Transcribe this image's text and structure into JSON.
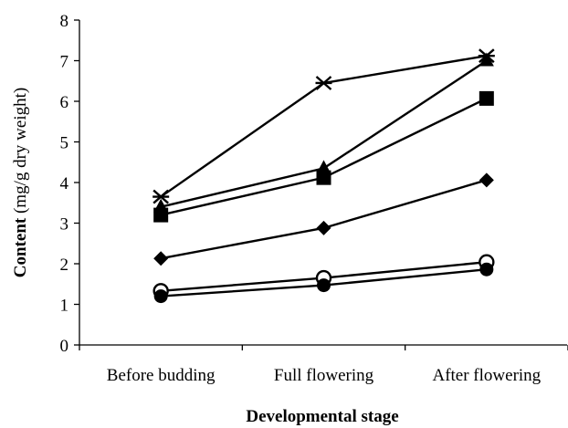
{
  "chart_data": {
    "type": "line",
    "title": "",
    "categories": [
      "Before budding",
      "Full flowering",
      "After flowering"
    ],
    "xlabel": "Developmental stage",
    "ylabel_bold": "Content",
    "ylabel_rest": " (mg/g dry weight)",
    "ylim": [
      0,
      8
    ],
    "yticks": [
      0,
      1,
      2,
      3,
      4,
      5,
      6,
      7,
      8
    ],
    "grid": false,
    "legend": "none",
    "series": [
      {
        "marker": "x-star",
        "values": [
          3.65,
          6.45,
          7.12
        ]
      },
      {
        "marker": "triangle",
        "values": [
          3.4,
          4.35,
          7.0
        ]
      },
      {
        "marker": "square",
        "values": [
          3.2,
          4.12,
          6.07
        ]
      },
      {
        "marker": "diamond",
        "values": [
          2.13,
          2.88,
          4.06
        ]
      },
      {
        "marker": "open-circle",
        "values": [
          1.33,
          1.65,
          2.04
        ]
      },
      {
        "marker": "filled-circle",
        "values": [
          1.2,
          1.47,
          1.86
        ]
      }
    ]
  }
}
